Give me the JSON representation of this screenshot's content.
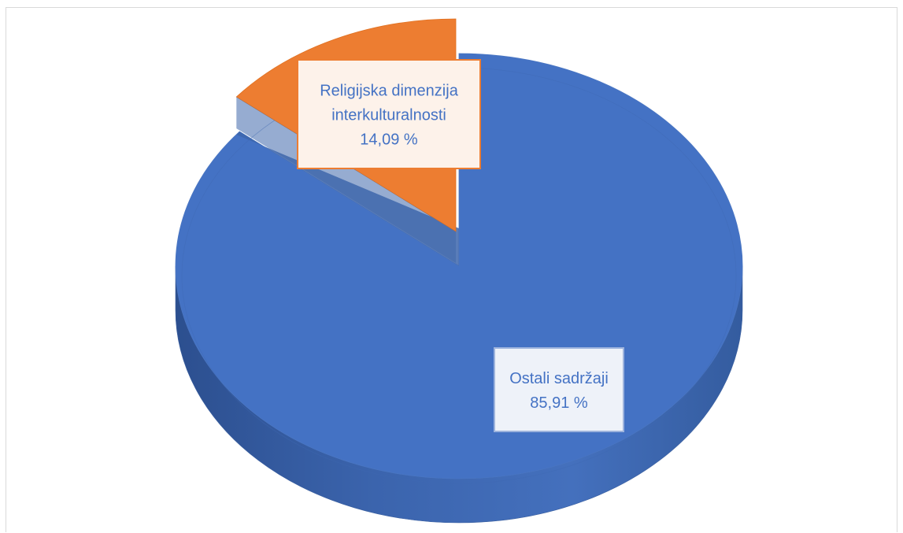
{
  "chart_data": {
    "type": "pie",
    "style": "3d",
    "title": "",
    "slices": [
      {
        "name": "Religijska dimenzija interkulturalnosti",
        "label_lines": [
          "Religijska dimenzija",
          "interkulturalnosti"
        ],
        "value": 14.09,
        "value_label": "14,09 %",
        "color": "#ed7d31"
      },
      {
        "name": "Ostali sadržaji",
        "label_lines": [
          "Ostali sadržaji"
        ],
        "value": 85.91,
        "value_label": "85,91 %",
        "color": "#4472c4"
      }
    ],
    "legend": "none",
    "data_labels": "callout-boxes"
  }
}
